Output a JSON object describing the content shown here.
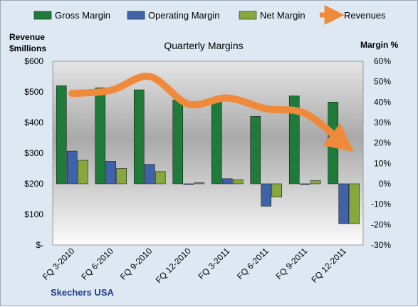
{
  "chart_data": {
    "type": "bar",
    "title": "Quarterly Margins",
    "company": "Skechers USA",
    "left_axis_title": [
      "Revenue",
      "$millions"
    ],
    "right_axis_title": "Margin %",
    "categories": [
      "FQ 3-2010",
      "FQ 6-2010",
      "FQ 9-2010",
      "FQ 12-2010",
      "FQ 3-2011",
      "FQ 6-2011",
      "FQ 9-2011",
      "FQ 12-2011"
    ],
    "left_ticks": [
      "$600",
      "$500",
      "$400",
      "$300",
      "$200",
      "$100",
      "$-"
    ],
    "right_ticks": [
      "60%",
      "50%",
      "40%",
      "30%",
      "20%",
      "10%",
      "0%",
      "-10%",
      "-20%",
      "-30%"
    ],
    "left_range": [
      0,
      600
    ],
    "right_range": [
      -30,
      60
    ],
    "series": [
      {
        "name": "Gross Margin",
        "axis": "right",
        "color": "#1e7b3a",
        "values": [
          48,
          47,
          46,
          41,
          41,
          33,
          43,
          40
        ]
      },
      {
        "name": "Operating Margin",
        "axis": "right",
        "color": "#3f63a8",
        "values": [
          16,
          11,
          9.5,
          0,
          2.5,
          -11,
          0,
          -19.5
        ]
      },
      {
        "name": "Net Margin",
        "axis": "right",
        "color": "#86a83c",
        "values": [
          11.5,
          7.5,
          6,
          0.5,
          2,
          -6.5,
          1.5,
          -19.5
        ]
      },
      {
        "name": "Revenues",
        "axis": "left",
        "type": "line",
        "color": "#ef8a3c",
        "values": [
          495,
          505,
          550,
          460,
          480,
          445,
          430,
          330
        ]
      }
    ],
    "legend_position": "top"
  }
}
